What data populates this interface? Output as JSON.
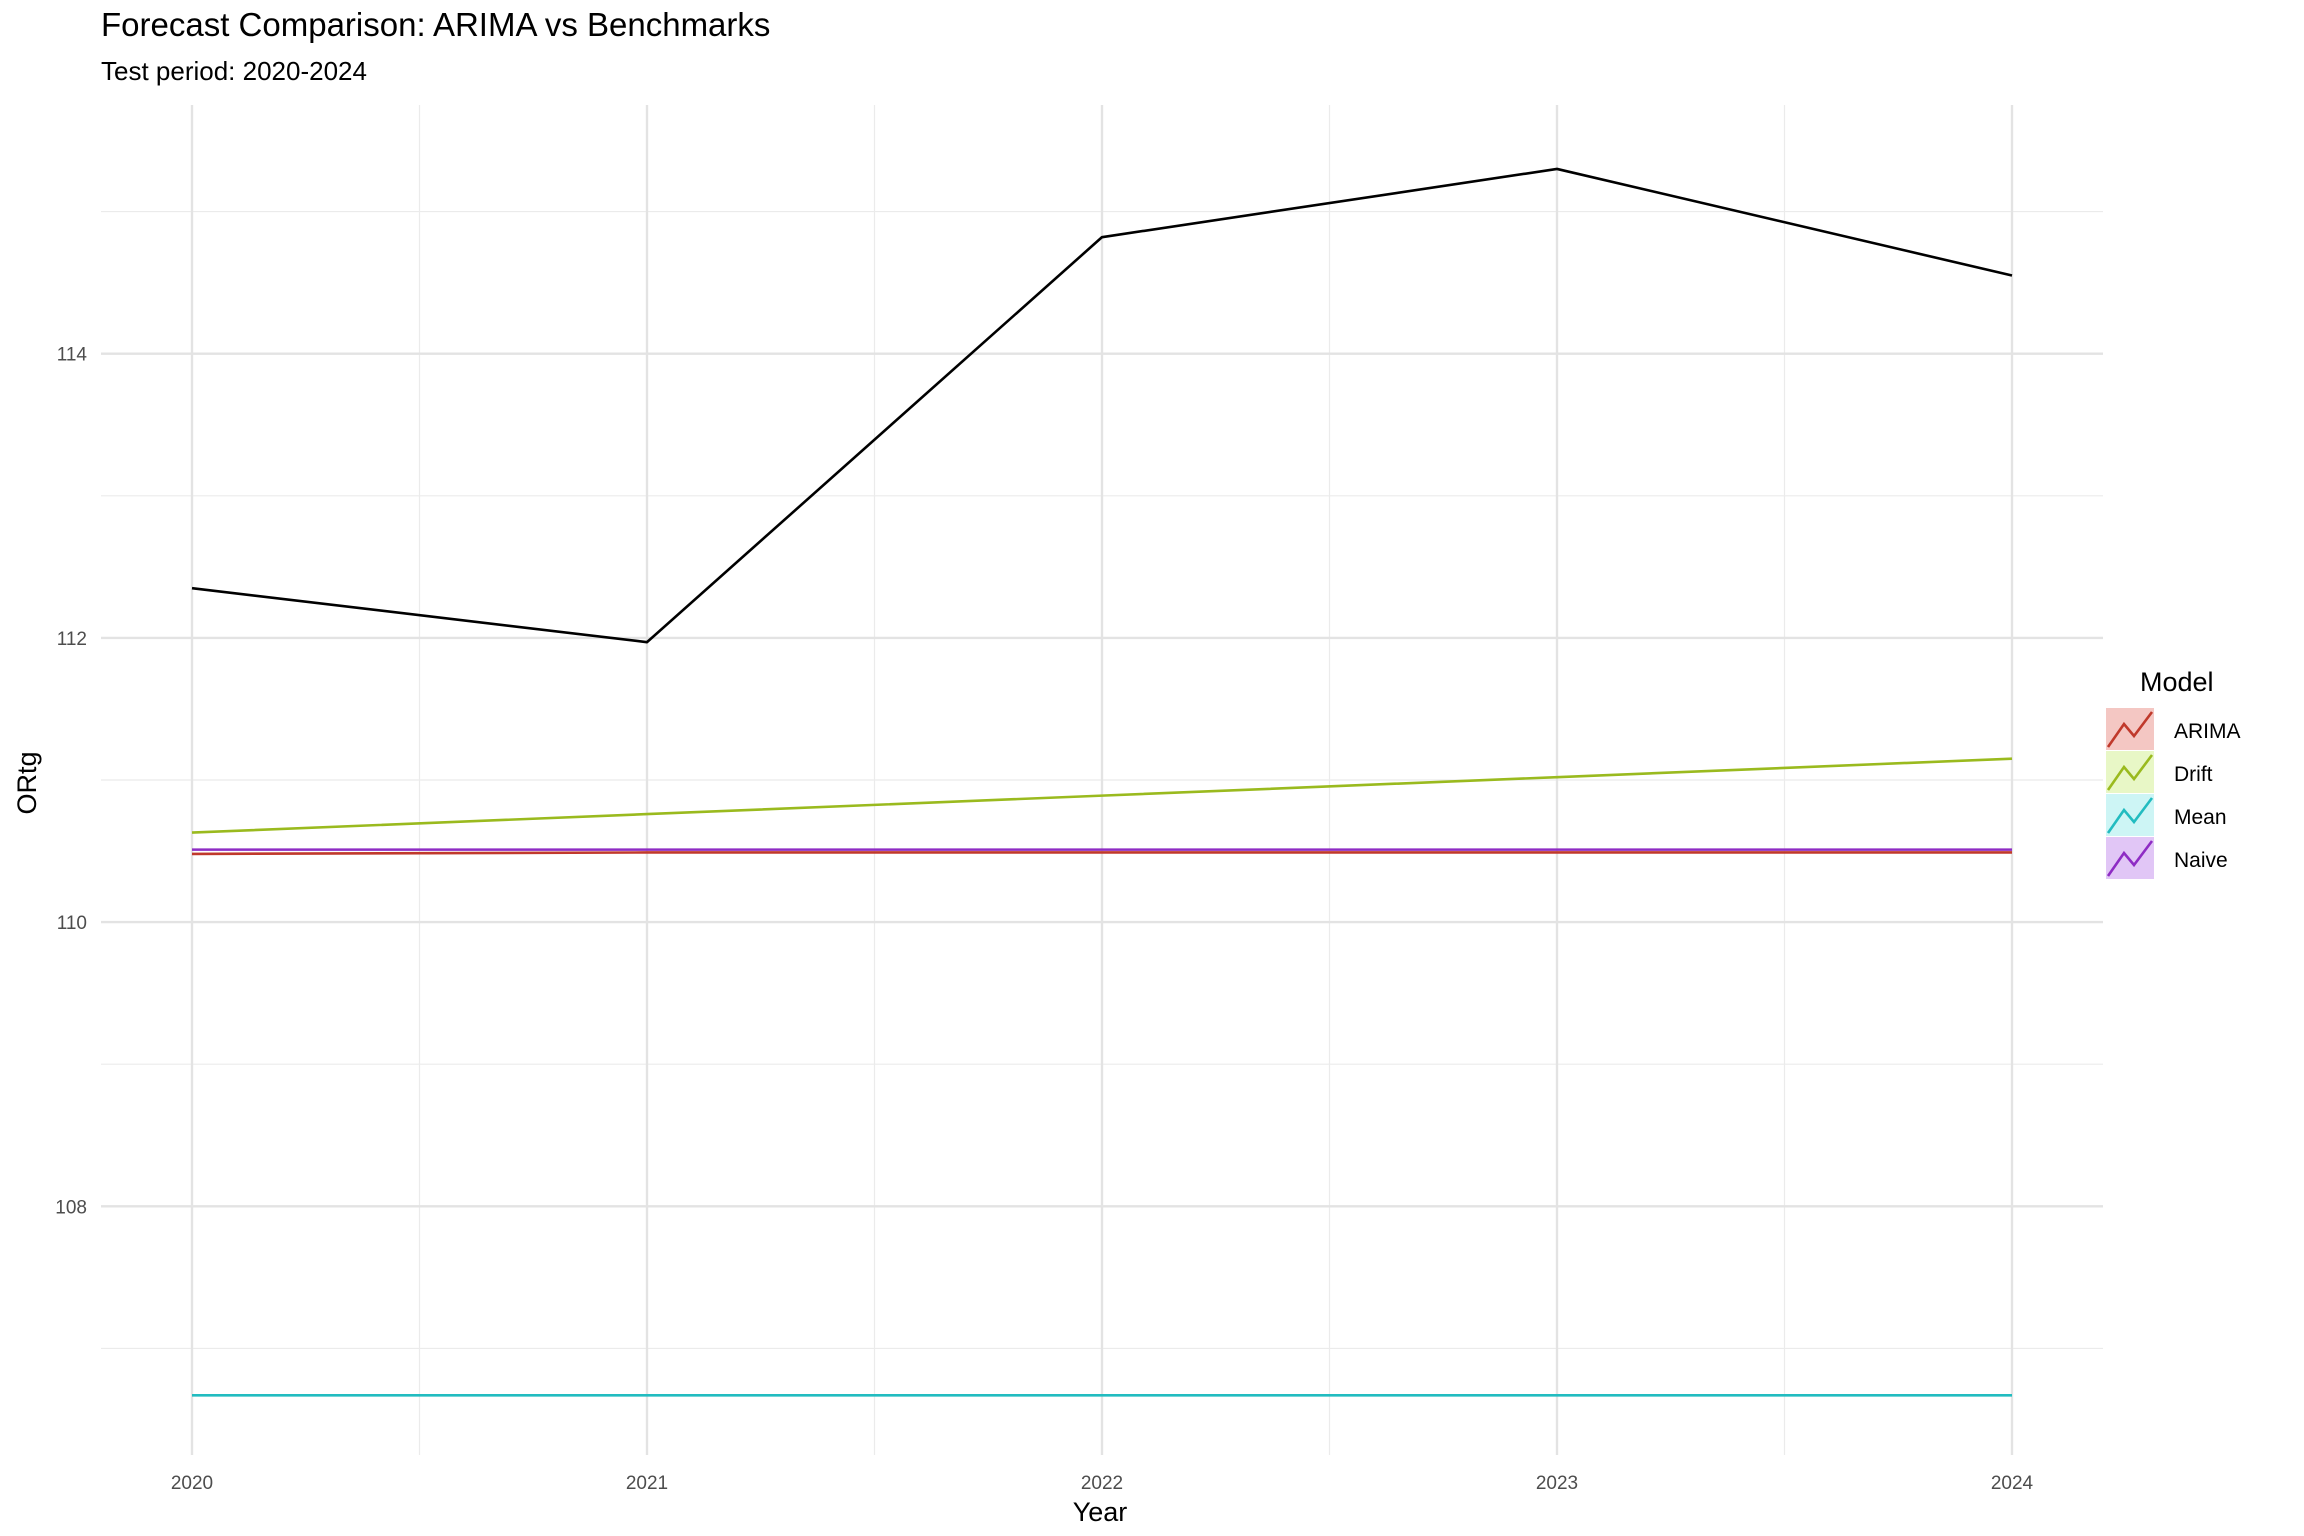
{
  "chart_data": {
    "type": "line",
    "title": "Forecast Comparison: ARIMA vs Benchmarks",
    "subtitle": "Test period: 2020-2024",
    "xlabel": "Year",
    "ylabel": "ORtg",
    "x": [
      2020,
      2021,
      2022,
      2023,
      2024
    ],
    "xlim": [
      2019.8,
      2024.2
    ],
    "ylim": [
      106.25,
      115.75
    ],
    "x_ticks": [
      2020,
      2021,
      2022,
      2023,
      2024
    ],
    "y_ticks": [
      108,
      110,
      112,
      114
    ],
    "grid": true,
    "legend": {
      "title": "Model",
      "placement": "right"
    },
    "actual": {
      "color": "#000000",
      "values": [
        112.35,
        111.97,
        114.82,
        115.3,
        114.55
      ]
    },
    "series": [
      {
        "name": "ARIMA",
        "color": "#c0392b",
        "fill": "#f4c7c3",
        "values": [
          110.48,
          110.49,
          110.49,
          110.49,
          110.49
        ]
      },
      {
        "name": "Drift",
        "color": "#9aba1e",
        "fill": "#e8f7c6",
        "values": [
          110.63,
          110.76,
          110.89,
          111.02,
          111.15
        ]
      },
      {
        "name": "Mean",
        "color": "#22bcc0",
        "fill": "#cdf5f5",
        "values": [
          106.67,
          106.67,
          106.67,
          106.67,
          106.67
        ]
      },
      {
        "name": "Naive",
        "color": "#8e2cc4",
        "fill": "#e1c6f6",
        "values": [
          110.51,
          110.51,
          110.51,
          110.51,
          110.51
        ]
      }
    ]
  }
}
